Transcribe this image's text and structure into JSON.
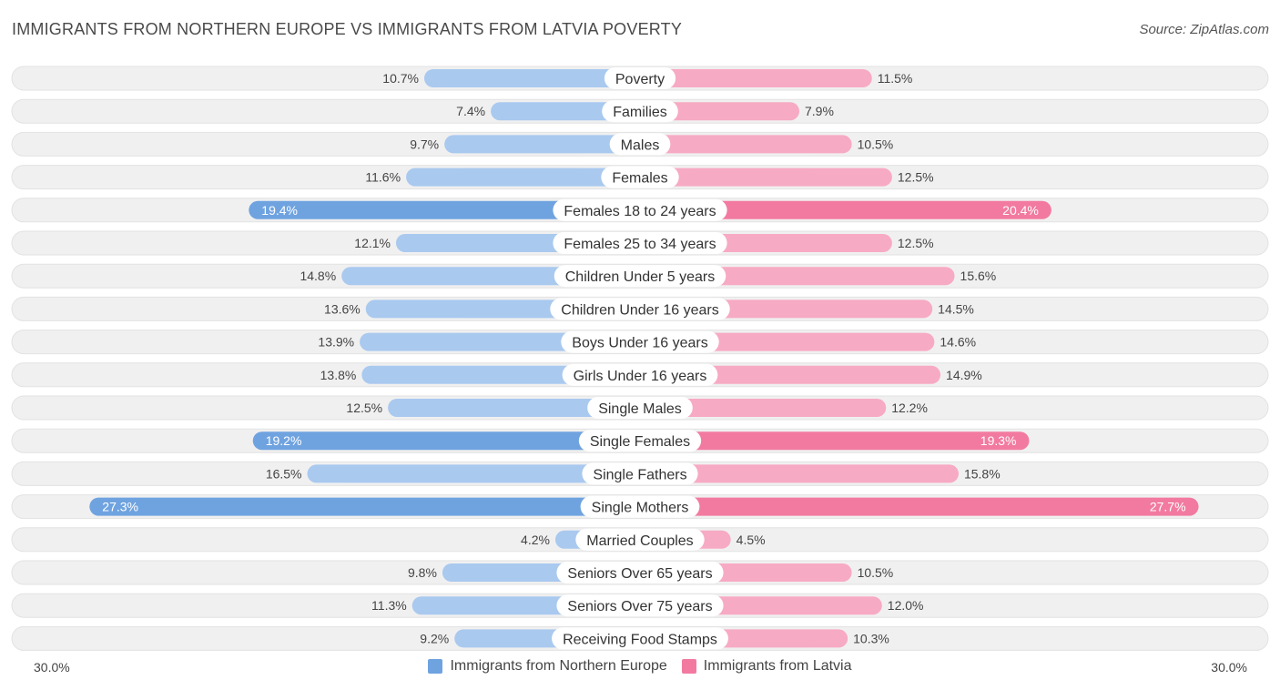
{
  "title": "IMMIGRANTS FROM NORTHERN EUROPE VS IMMIGRANTS FROM LATVIA POVERTY",
  "source": "Source: ZipAtlas.com",
  "colors": {
    "left_bar": "#6fa3e0",
    "left_bar_light": "#a9c9ef",
    "right_bar": "#f27aa0",
    "right_bar_light": "#f7aac3",
    "row_bg": "#f0f0f0",
    "row_border": "#e2e2e2"
  },
  "chart_data": {
    "type": "bar",
    "orientation": "horizontal-diverging",
    "title": "IMMIGRANTS FROM NORTHERN EUROPE VS IMMIGRANTS FROM LATVIA POVERTY",
    "categories": [
      "Poverty",
      "Families",
      "Males",
      "Females",
      "Females 18 to 24 years",
      "Females 25 to 34 years",
      "Children Under 5 years",
      "Children Under 16 years",
      "Boys Under 16 years",
      "Girls Under 16 years",
      "Single Males",
      "Single Females",
      "Single Fathers",
      "Single Mothers",
      "Married Couples",
      "Seniors Over 65 years",
      "Seniors Over 75 years",
      "Receiving Food Stamps"
    ],
    "series": [
      {
        "name": "Immigrants from Northern Europe",
        "values": [
          10.7,
          7.4,
          9.7,
          11.6,
          19.4,
          12.1,
          14.8,
          13.6,
          13.9,
          13.8,
          12.5,
          19.2,
          16.5,
          27.3,
          4.2,
          9.8,
          11.3,
          9.2
        ],
        "labels": [
          "10.7%",
          "7.4%",
          "9.7%",
          "11.6%",
          "19.4%",
          "12.1%",
          "14.8%",
          "13.6%",
          "13.9%",
          "13.8%",
          "12.5%",
          "19.2%",
          "16.5%",
          "27.3%",
          "4.2%",
          "9.8%",
          "11.3%",
          "9.2%"
        ]
      },
      {
        "name": "Immigrants from Latvia",
        "values": [
          11.5,
          7.9,
          10.5,
          12.5,
          20.4,
          12.5,
          15.6,
          14.5,
          14.6,
          14.9,
          12.2,
          19.3,
          15.8,
          27.7,
          4.5,
          10.5,
          12.0,
          10.3
        ],
        "labels": [
          "11.5%",
          "7.9%",
          "10.5%",
          "12.5%",
          "20.4%",
          "12.5%",
          "15.6%",
          "14.5%",
          "14.6%",
          "14.9%",
          "12.2%",
          "19.3%",
          "15.8%",
          "27.7%",
          "4.5%",
          "10.5%",
          "12.0%",
          "10.3%"
        ]
      }
    ],
    "xlim": [
      0,
      30
    ],
    "axis_min_label": "30.0%",
    "axis_max_label": "30.0%",
    "legend_position": "bottom-center"
  }
}
